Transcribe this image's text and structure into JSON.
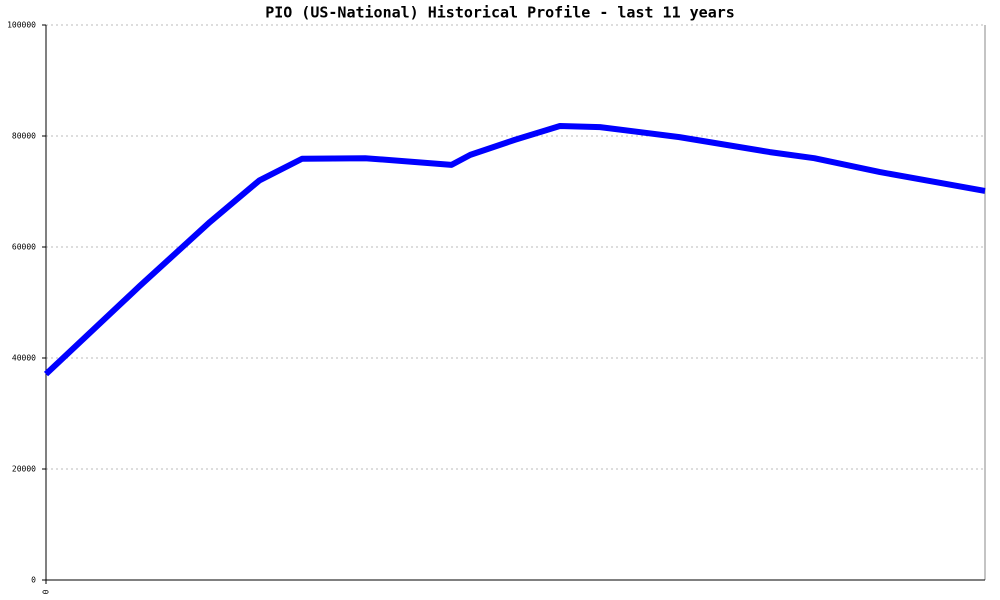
{
  "chart_data": {
    "type": "line",
    "title": "PIO (US-National) Historical Profile - last 11 years",
    "x": [
      0,
      1.1,
      1.92,
      2.5,
      3.0,
      3.74,
      4.75,
      4.97,
      5.49,
      6.02,
      6.49,
      7.42,
      8.48,
      9.0,
      9.77,
      11
    ],
    "series": [
      {
        "color": "#0000ff",
        "values": [
          37100,
          53000,
          64500,
          72000,
          75900,
          76000,
          74800,
          76600,
          79300,
          81800,
          81600,
          79800,
          77100,
          76000,
          73500,
          70100
        ]
      }
    ],
    "xlim": [
      0,
      11
    ],
    "xticks": [
      0
    ],
    "ylim": [
      0,
      100000
    ],
    "yticks": [
      0,
      20000,
      40000,
      60000,
      80000,
      100000
    ],
    "grid": true
  }
}
